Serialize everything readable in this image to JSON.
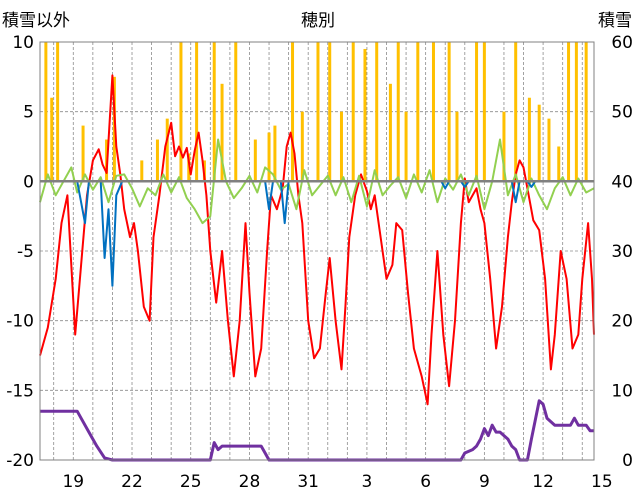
{
  "chart_data": {
    "type": "line",
    "title": "穂別",
    "ylabel_left": "積雪以外",
    "ylabel_right": "積雪",
    "x_tick_labels": [
      "19",
      "22",
      "25",
      "28",
      "31",
      "3",
      "6",
      "9",
      "12",
      "15"
    ],
    "ylim_left": [
      -20,
      10
    ],
    "ylim_right": [
      0,
      60
    ],
    "yticks_left": [
      "10",
      "5",
      "0",
      "-5",
      "-10",
      "-15",
      "-20"
    ],
    "yticks_right": [
      "60",
      "50",
      "40",
      "30",
      "20",
      "10",
      "0"
    ],
    "grid": true,
    "x_range_days": [
      17.3,
      45.6
    ],
    "vertical_gridlines_per_day": true,
    "series": [
      {
        "axis": "left",
        "color": "#ff0000",
        "points": [
          [
            17.3,
            -12.5
          ],
          [
            17.7,
            -10.5
          ],
          [
            18.1,
            -7
          ],
          [
            18.4,
            -3
          ],
          [
            18.7,
            -1
          ],
          [
            18.9,
            -6
          ],
          [
            19.1,
            -11
          ],
          [
            19.4,
            -6
          ],
          [
            19.7,
            -1
          ],
          [
            20.0,
            1.5
          ],
          [
            20.3,
            2.3
          ],
          [
            20.5,
            1.2
          ],
          [
            20.7,
            0.6
          ],
          [
            21.0,
            7.6
          ],
          [
            21.2,
            2.5
          ],
          [
            21.4,
            0.5
          ],
          [
            21.6,
            -2
          ],
          [
            21.9,
            -4
          ],
          [
            22.1,
            -3
          ],
          [
            22.3,
            -5
          ],
          [
            22.6,
            -9
          ],
          [
            22.9,
            -10
          ],
          [
            23.1,
            -4
          ],
          [
            23.4,
            -1
          ],
          [
            23.7,
            2.5
          ],
          [
            24.0,
            4.2
          ],
          [
            24.2,
            1.8
          ],
          [
            24.4,
            2.5
          ],
          [
            24.6,
            1.7
          ],
          [
            24.8,
            2.4
          ],
          [
            25.0,
            0.5
          ],
          [
            25.2,
            2.2
          ],
          [
            25.4,
            3.5
          ],
          [
            25.6,
            1.5
          ],
          [
            25.8,
            -1
          ],
          [
            26.0,
            -5
          ],
          [
            26.3,
            -8.7
          ],
          [
            26.6,
            -5
          ],
          [
            26.9,
            -10
          ],
          [
            27.2,
            -14
          ],
          [
            27.5,
            -10
          ],
          [
            27.8,
            -3
          ],
          [
            28.0,
            -8
          ],
          [
            28.3,
            -14
          ],
          [
            28.6,
            -12
          ],
          [
            28.9,
            -5
          ],
          [
            29.1,
            -1
          ],
          [
            29.4,
            -2
          ],
          [
            29.7,
            -0.5
          ],
          [
            29.9,
            2.5
          ],
          [
            30.1,
            3.5
          ],
          [
            30.3,
            2
          ],
          [
            30.5,
            -1
          ],
          [
            30.7,
            -3
          ],
          [
            31.0,
            -10
          ],
          [
            31.3,
            -12.7
          ],
          [
            31.6,
            -12
          ],
          [
            31.9,
            -8
          ],
          [
            32.1,
            -5.5
          ],
          [
            32.4,
            -10
          ],
          [
            32.7,
            -13.5
          ],
          [
            32.9,
            -9
          ],
          [
            33.1,
            -4
          ],
          [
            33.4,
            -1
          ],
          [
            33.7,
            0.5
          ],
          [
            34.0,
            -0.7
          ],
          [
            34.2,
            -2
          ],
          [
            34.4,
            -1
          ],
          [
            34.7,
            -4
          ],
          [
            35.0,
            -7
          ],
          [
            35.3,
            -6
          ],
          [
            35.5,
            -3
          ],
          [
            35.8,
            -3.5
          ],
          [
            36.1,
            -8
          ],
          [
            36.4,
            -12
          ],
          [
            36.8,
            -14
          ],
          [
            37.1,
            -16
          ],
          [
            37.3,
            -11
          ],
          [
            37.6,
            -5
          ],
          [
            37.9,
            -11
          ],
          [
            38.2,
            -14.7
          ],
          [
            38.5,
            -10
          ],
          [
            38.8,
            -3
          ],
          [
            39.0,
            0.2
          ],
          [
            39.2,
            -1.5
          ],
          [
            39.4,
            -1
          ],
          [
            39.6,
            -0.5
          ],
          [
            39.8,
            -2
          ],
          [
            40.0,
            -3
          ],
          [
            40.3,
            -7
          ],
          [
            40.6,
            -12
          ],
          [
            40.9,
            -9
          ],
          [
            41.2,
            -4
          ],
          [
            41.4,
            -1.5
          ],
          [
            41.6,
            0.5
          ],
          [
            41.8,
            1.5
          ],
          [
            42.0,
            1
          ],
          [
            42.2,
            -0.5
          ],
          [
            42.5,
            -2.8
          ],
          [
            42.8,
            -3.5
          ],
          [
            43.1,
            -7
          ],
          [
            43.4,
            -13.5
          ],
          [
            43.6,
            -11
          ],
          [
            43.9,
            -5
          ],
          [
            44.2,
            -7
          ],
          [
            44.5,
            -12
          ],
          [
            44.8,
            -11
          ],
          [
            45.0,
            -7
          ],
          [
            45.3,
            -3
          ],
          [
            45.5,
            -7
          ],
          [
            45.6,
            -11
          ]
        ]
      },
      {
        "axis": "left",
        "color": "#92d050",
        "points": [
          [
            17.3,
            -1.5
          ],
          [
            17.7,
            0.5
          ],
          [
            18.1,
            -1
          ],
          [
            18.5,
            0
          ],
          [
            18.9,
            1
          ],
          [
            19.2,
            -0.8
          ],
          [
            19.6,
            0.5
          ],
          [
            20.0,
            -0.6
          ],
          [
            20.4,
            0.3
          ],
          [
            20.8,
            -1.5
          ],
          [
            21.2,
            0.4
          ],
          [
            21.6,
            0.5
          ],
          [
            22.0,
            -0.5
          ],
          [
            22.4,
            -1.8
          ],
          [
            22.8,
            -0.5
          ],
          [
            23.2,
            -1
          ],
          [
            23.6,
            0.5
          ],
          [
            24.0,
            -0.8
          ],
          [
            24.4,
            0.3
          ],
          [
            24.8,
            -1.2
          ],
          [
            25.2,
            -2
          ],
          [
            25.6,
            -3
          ],
          [
            26.0,
            -2.5
          ],
          [
            26.4,
            3
          ],
          [
            26.8,
            0
          ],
          [
            27.2,
            -1.2
          ],
          [
            27.6,
            -0.5
          ],
          [
            28.0,
            0.4
          ],
          [
            28.4,
            -0.8
          ],
          [
            28.8,
            1
          ],
          [
            29.2,
            0.5
          ],
          [
            29.6,
            -0.6
          ],
          [
            30.0,
            -0.2
          ],
          [
            30.4,
            -2
          ],
          [
            30.8,
            0.8
          ],
          [
            31.2,
            -1
          ],
          [
            31.6,
            -0.3
          ],
          [
            32.0,
            0.4
          ],
          [
            32.4,
            -1
          ],
          [
            32.8,
            0.3
          ],
          [
            33.2,
            -1.5
          ],
          [
            33.6,
            0.4
          ],
          [
            34.0,
            -1.8
          ],
          [
            34.4,
            0.8
          ],
          [
            34.8,
            -1
          ],
          [
            35.2,
            -0.3
          ],
          [
            35.6,
            0.3
          ],
          [
            36.0,
            -1.2
          ],
          [
            36.4,
            0.5
          ],
          [
            36.8,
            -0.8
          ],
          [
            37.2,
            0.8
          ],
          [
            37.6,
            -1.5
          ],
          [
            38.0,
            0.2
          ],
          [
            38.4,
            -0.6
          ],
          [
            38.8,
            0.5
          ],
          [
            39.2,
            -1
          ],
          [
            39.6,
            0.4
          ],
          [
            40.0,
            -2
          ],
          [
            40.4,
            0
          ],
          [
            40.8,
            3
          ],
          [
            41.2,
            -1
          ],
          [
            41.6,
            0.5
          ],
          [
            42.0,
            -1.5
          ],
          [
            42.4,
            0.2
          ],
          [
            42.8,
            -1
          ],
          [
            43.2,
            -2
          ],
          [
            43.6,
            -0.5
          ],
          [
            44.0,
            0.3
          ],
          [
            44.4,
            -1
          ],
          [
            44.8,
            0.2
          ],
          [
            45.2,
            -0.8
          ],
          [
            45.6,
            -0.5
          ]
        ]
      },
      {
        "axis": "left",
        "color": "#0070c0",
        "points": [
          [
            17.3,
            0
          ],
          [
            19.2,
            0
          ],
          [
            19.6,
            -3
          ],
          [
            19.8,
            0
          ],
          [
            20.4,
            0
          ],
          [
            20.6,
            -5.5
          ],
          [
            20.8,
            -2
          ],
          [
            21.0,
            -7.5
          ],
          [
            21.2,
            -1
          ],
          [
            21.5,
            0
          ],
          [
            28.8,
            0
          ],
          [
            29.0,
            -2
          ],
          [
            29.2,
            0
          ],
          [
            29.6,
            0
          ],
          [
            29.8,
            -3
          ],
          [
            30.0,
            0
          ],
          [
            37.8,
            0
          ],
          [
            38.0,
            -0.5
          ],
          [
            38.2,
            0
          ],
          [
            38.8,
            0
          ],
          [
            39.0,
            -0.4
          ],
          [
            39.2,
            0
          ],
          [
            41.4,
            0
          ],
          [
            41.6,
            -1.5
          ],
          [
            41.8,
            0
          ],
          [
            42.2,
            0
          ],
          [
            42.4,
            -0.4
          ],
          [
            42.6,
            0
          ],
          [
            45.6,
            0
          ]
        ]
      },
      {
        "axis": "left",
        "color": "#808080",
        "points": [
          [
            17.3,
            0
          ],
          [
            45.6,
            0
          ]
        ]
      },
      {
        "axis": "right",
        "color": "#7030a0",
        "points": [
          [
            17.3,
            7
          ],
          [
            19.2,
            7
          ],
          [
            19.4,
            6
          ],
          [
            19.8,
            4
          ],
          [
            20.2,
            2
          ],
          [
            20.6,
            0.3
          ],
          [
            21.0,
            0
          ],
          [
            26.0,
            0
          ],
          [
            26.2,
            2.5
          ],
          [
            26.4,
            1.5
          ],
          [
            26.6,
            2
          ],
          [
            26.8,
            2
          ],
          [
            28.6,
            2
          ],
          [
            28.8,
            1
          ],
          [
            29.0,
            0
          ],
          [
            38.8,
            0
          ],
          [
            39.0,
            1
          ],
          [
            39.4,
            1.5
          ],
          [
            39.6,
            2
          ],
          [
            39.8,
            3
          ],
          [
            40.0,
            4.5
          ],
          [
            40.2,
            3.5
          ],
          [
            40.4,
            5
          ],
          [
            40.6,
            4
          ],
          [
            40.8,
            4
          ],
          [
            41.2,
            3
          ],
          [
            41.4,
            2
          ],
          [
            41.6,
            1.5
          ],
          [
            41.8,
            0
          ],
          [
            42.2,
            0
          ],
          [
            42.4,
            3
          ],
          [
            42.8,
            8.5
          ],
          [
            43.0,
            8
          ],
          [
            43.2,
            6
          ],
          [
            43.6,
            5
          ],
          [
            44.0,
            5
          ],
          [
            44.4,
            5
          ],
          [
            44.6,
            6
          ],
          [
            44.8,
            5
          ],
          [
            45.0,
            5
          ],
          [
            45.2,
            5
          ],
          [
            45.4,
            4.2
          ],
          [
            45.6,
            4.2
          ]
        ]
      }
    ],
    "bars": {
      "axis": "left",
      "color": "#ffc000",
      "base": 0,
      "items": [
        [
          17.6,
          10
        ],
        [
          17.9,
          6
        ],
        [
          18.2,
          10
        ],
        [
          19.5,
          4
        ],
        [
          20.7,
          3
        ],
        [
          21.1,
          7.5
        ],
        [
          22.5,
          1.5
        ],
        [
          23.3,
          3
        ],
        [
          23.8,
          4.5
        ],
        [
          24.5,
          10
        ],
        [
          24.9,
          2
        ],
        [
          25.3,
          10
        ],
        [
          25.7,
          1.5
        ],
        [
          26.2,
          10
        ],
        [
          26.6,
          7
        ],
        [
          27.3,
          10
        ],
        [
          28.3,
          3
        ],
        [
          29.0,
          3.5
        ],
        [
          29.3,
          4
        ],
        [
          30.2,
          10
        ],
        [
          30.7,
          5
        ],
        [
          31.5,
          10
        ],
        [
          32.1,
          10
        ],
        [
          32.7,
          5
        ],
        [
          33.3,
          10
        ],
        [
          33.9,
          9.5
        ],
        [
          34.5,
          10
        ],
        [
          35.2,
          7
        ],
        [
          35.6,
          10
        ],
        [
          36.0,
          5
        ],
        [
          36.6,
          10
        ],
        [
          37.4,
          10
        ],
        [
          38.2,
          10
        ],
        [
          38.6,
          5
        ],
        [
          39.6,
          10
        ],
        [
          40.0,
          10
        ],
        [
          41.0,
          5
        ],
        [
          41.6,
          10
        ],
        [
          42.3,
          6
        ],
        [
          42.8,
          5.5
        ],
        [
          43.3,
          4.5
        ],
        [
          43.8,
          2.5
        ],
        [
          44.3,
          10
        ],
        [
          44.7,
          10
        ],
        [
          45.2,
          10
        ]
      ]
    }
  }
}
